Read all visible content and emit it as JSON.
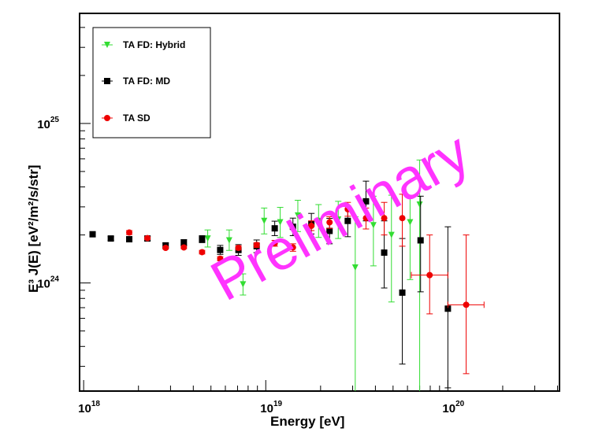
{
  "chart_data": {
    "type": "scatter",
    "title": "",
    "xlabel": "Energy [eV]",
    "ylabel": "E³ J(E) [eV²/m²/s/str]",
    "xscale": "log",
    "yscale": "log",
    "xlim": [
      9.5e+17,
      4.1e+20
    ],
    "ylim": [
      2.1e+23,
      4.9e+25
    ],
    "x_ticks": [
      {
        "value": 1e+18,
        "base": "10",
        "exp": "18"
      },
      {
        "value": 1e+19,
        "base": "10",
        "exp": "19"
      },
      {
        "value": 1e+20,
        "base": "10",
        "exp": "20"
      }
    ],
    "y_ticks": [
      {
        "value": 1e+24,
        "base": "10",
        "exp": "24"
      },
      {
        "value": 1e+25,
        "base": "10",
        "exp": "25"
      }
    ],
    "grid": false,
    "legend_position": "top-left",
    "watermark": "Preliminary",
    "watermark_color": "#ff33ff",
    "series": [
      {
        "name": "TA FD: Hybrid",
        "marker": "triangle-down",
        "color": "#33dd33",
        "points": [
          {
            "x": 4.8e+18,
            "y": 1.9e+24,
            "ylo": 1.68e+24,
            "yhi": 2.15e+24
          },
          {
            "x": 6.3e+18,
            "y": 1.85e+24,
            "ylo": 1.6e+24,
            "yhi": 2.15e+24
          },
          {
            "x": 7.5e+18,
            "y": 9.8e+23,
            "ylo": 8.4e+23,
            "yhi": 1.14e+24
          },
          {
            "x": 9.8e+18,
            "y": 2.45e+24,
            "ylo": 2.03e+24,
            "yhi": 2.95e+24
          },
          {
            "x": 1.2e+19,
            "y": 2.4e+24,
            "ylo": 1.93e+24,
            "yhi": 2.98e+24
          },
          {
            "x": 1.5e+19,
            "y": 2.65e+24,
            "ylo": 2.1e+24,
            "yhi": 3.3e+24
          },
          {
            "x": 1.95e+19,
            "y": 2.45e+24,
            "ylo": 1.93e+24,
            "yhi": 3.1e+24
          },
          {
            "x": 2.5e+19,
            "y": 2.5e+24,
            "ylo": 1.9e+24,
            "yhi": 3.25e+24
          },
          {
            "x": 3.1e+19,
            "y": 1.25e+24,
            "ylo": 2.1e+23,
            "yhi": 2.6e+24
          },
          {
            "x": 3.9e+19,
            "y": 2.3e+24,
            "ylo": 1.28e+24,
            "yhi": 3.5e+24
          },
          {
            "x": 4.9e+19,
            "y": 2e+24,
            "ylo": 7.6e+23,
            "yhi": 3.55e+24
          },
          {
            "x": 6.2e+19,
            "y": 2.4e+24,
            "ylo": 1.05e+24,
            "yhi": 3.55e+24
          },
          {
            "x": 7e+19,
            "y": 3.1e+24,
            "ylo": 2.1e+23,
            "yhi": 5.9e+24
          }
        ]
      },
      {
        "name": "TA FD: MD",
        "marker": "square",
        "color": "#000000",
        "points": [
          {
            "x": 1.12e+18,
            "y": 2.02e+24,
            "ylo": 1.96e+24,
            "yhi": 2.08e+24
          },
          {
            "x": 1.41e+18,
            "y": 1.9e+24,
            "ylo": 1.85e+24,
            "yhi": 1.95e+24
          },
          {
            "x": 1.78e+18,
            "y": 1.88e+24,
            "ylo": 1.83e+24,
            "yhi": 1.93e+24
          },
          {
            "x": 2.24e+18,
            "y": 1.9e+24,
            "ylo": 1.84e+24,
            "yhi": 1.96e+24
          },
          {
            "x": 2.82e+18,
            "y": 1.72e+24,
            "ylo": 1.66e+24,
            "yhi": 1.78e+24
          },
          {
            "x": 3.55e+18,
            "y": 1.79e+24,
            "ylo": 1.72e+24,
            "yhi": 1.87e+24
          },
          {
            "x": 4.47e+18,
            "y": 1.88e+24,
            "ylo": 1.79e+24,
            "yhi": 1.98e+24
          },
          {
            "x": 5.62e+18,
            "y": 1.61e+24,
            "ylo": 1.51e+24,
            "yhi": 1.72e+24
          },
          {
            "x": 7.08e+18,
            "y": 1.61e+24,
            "ylo": 1.49e+24,
            "yhi": 1.74e+24
          },
          {
            "x": 8.91e+18,
            "y": 1.7e+24,
            "ylo": 1.55e+24,
            "yhi": 1.86e+24
          },
          {
            "x": 1.12e+19,
            "y": 2.2e+24,
            "ylo": 1.98e+24,
            "yhi": 2.44e+24
          },
          {
            "x": 1.41e+19,
            "y": 2.25e+24,
            "ylo": 1.98e+24,
            "yhi": 2.55e+24
          },
          {
            "x": 1.78e+19,
            "y": 2.35e+24,
            "ylo": 2.03e+24,
            "yhi": 2.73e+24
          },
          {
            "x": 2.24e+19,
            "y": 2.12e+24,
            "ylo": 1.76e+24,
            "yhi": 2.54e+24
          },
          {
            "x": 2.82e+19,
            "y": 2.45e+24,
            "ylo": 1.95e+24,
            "yhi": 3.05e+24
          },
          {
            "x": 3.55e+19,
            "y": 3.25e+24,
            "ylo": 2.45e+24,
            "yhi": 4.35e+24
          },
          {
            "x": 4.47e+19,
            "y": 1.55e+24,
            "ylo": 9.3e+23,
            "yhi": 2.45e+24
          },
          {
            "x": 5.62e+19,
            "y": 8.7e+23,
            "ylo": 3.1e+23,
            "yhi": 1.9e+24
          },
          {
            "x": 7.08e+19,
            "y": 1.85e+24,
            "ylo": 8.8e+23,
            "yhi": 3.5e+24
          },
          {
            "x": 1e+20,
            "y": 6.9e+23,
            "ylo": 2.2e+23,
            "yhi": 2.25e+24
          }
        ]
      },
      {
        "name": "TA SD",
        "marker": "circle",
        "color": "#ee0000",
        "points": [
          {
            "x": 1.78e+18,
            "y": 2.07e+24,
            "ylo": 2.01e+24,
            "yhi": 2.13e+24
          },
          {
            "x": 2.24e+18,
            "y": 1.91e+24,
            "ylo": 1.87e+24,
            "yhi": 1.95e+24
          },
          {
            "x": 2.82e+18,
            "y": 1.66e+24,
            "ylo": 1.63e+24,
            "yhi": 1.69e+24
          },
          {
            "x": 3.55e+18,
            "y": 1.67e+24,
            "ylo": 1.64e+24,
            "yhi": 1.7e+24
          },
          {
            "x": 4.47e+18,
            "y": 1.56e+24,
            "ylo": 1.52e+24,
            "yhi": 1.6e+24
          },
          {
            "x": 5.62e+18,
            "y": 1.42e+24,
            "ylo": 1.38e+24,
            "yhi": 1.46e+24
          },
          {
            "x": 7.08e+18,
            "y": 1.66e+24,
            "ylo": 1.61e+24,
            "yhi": 1.71e+24
          },
          {
            "x": 8.91e+18,
            "y": 1.73e+24,
            "ylo": 1.67e+24,
            "yhi": 1.79e+24
          },
          {
            "x": 1.12e+19,
            "y": 1.77e+24,
            "ylo": 1.7e+24,
            "yhi": 1.85e+24
          },
          {
            "x": 1.41e+19,
            "y": 1.67e+24,
            "ylo": 1.58e+24,
            "yhi": 1.76e+24
          },
          {
            "x": 1.78e+19,
            "y": 2.28e+24,
            "ylo": 2.13e+24,
            "yhi": 2.45e+24
          },
          {
            "x": 2.24e+19,
            "y": 2.4e+24,
            "ylo": 2.2e+24,
            "yhi": 2.6e+24
          },
          {
            "x": 2.82e+19,
            "y": 2.9e+24,
            "ylo": 2.62e+24,
            "yhi": 3.2e+24
          },
          {
            "x": 3.55e+19,
            "y": 2.55e+24,
            "ylo": 2.18e+24,
            "yhi": 2.95e+24
          },
          {
            "x": 4.47e+19,
            "y": 2.55e+24,
            "ylo": 2e+24,
            "yhi": 3.2e+24
          },
          {
            "x": 5.62e+19,
            "y": 2.55e+24,
            "ylo": 1.7e+24,
            "yhi": 3.6e+24
          },
          {
            "x": 7.94e+19,
            "y": 1.12e+24,
            "ylo": 6.4e+23,
            "yhi": 2e+24,
            "xlo": 6.3e+19,
            "xhi": 1e+20
          },
          {
            "x": 1.26e+20,
            "y": 7.3e+23,
            "ylo": 2.7e+23,
            "yhi": 2e+24,
            "xlo": 1e+20,
            "xhi": 1.58e+20
          }
        ]
      }
    ]
  }
}
